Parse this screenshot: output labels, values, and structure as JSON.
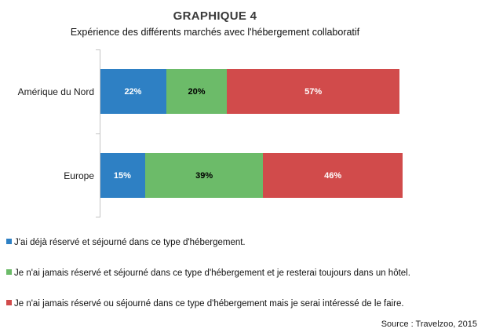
{
  "header": {
    "title": "GRAPHIQUE 4",
    "subtitle": "Expérience des différents marchés avec l'hébergement collaboratif"
  },
  "chart_data": {
    "type": "bar",
    "orientation": "horizontal",
    "stacked": true,
    "title": "GRAPHIQUE 4",
    "subtitle": "Expérience des différents marchés avec l'hébergement collaboratif",
    "categories": [
      "Amérique du Nord",
      "Europe"
    ],
    "series": [
      {
        "name": "J'ai déjà réservé et séjourné dans ce type d'hébergement.",
        "color": "#2E80C4",
        "label_color": "#FFFFFF",
        "values": [
          22,
          15
        ]
      },
      {
        "name": "Je n'ai jamais réservé et séjourné dans ce type d'hébergement et je resterai toujours dans un hôtel.",
        "color": "#6CBB69",
        "label_color": "#000000",
        "values": [
          20,
          39
        ]
      },
      {
        "name": "Je n'ai jamais réservé ou séjourné dans ce type d'hébergement mais je serai intéressé de le faire.",
        "color": "#D14B4B",
        "label_color": "#FFFFFF",
        "values": [
          57,
          46
        ]
      }
    ],
    "value_suffix": "%",
    "xlim": [
      0,
      100
    ],
    "grid": false,
    "legend_position": "bottom-left"
  },
  "source": {
    "label": "Source : Travelzoo, 2015"
  }
}
